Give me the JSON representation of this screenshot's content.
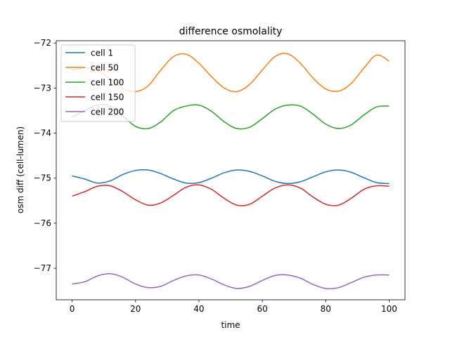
{
  "chart_data": {
    "type": "line",
    "title": "difference osmolality",
    "xlabel": "time",
    "ylabel": "osm diff (cell-lumen)",
    "xlim": [
      -5,
      105
    ],
    "ylim": [
      -77.7,
      -71.95
    ],
    "xticks": [
      0,
      20,
      40,
      60,
      80,
      100
    ],
    "yticks": [
      -77,
      -76,
      -75,
      -74,
      -73,
      -72
    ],
    "grid": false,
    "legend_position": "top-left",
    "x": [
      0,
      4,
      8,
      12,
      16,
      20,
      24,
      28,
      32,
      36,
      40,
      44,
      48,
      52,
      56,
      60,
      64,
      68,
      72,
      76,
      80,
      84,
      88,
      92,
      96,
      100
    ],
    "series": [
      {
        "name": "cell 1",
        "color": "#1f77b4",
        "values": [
          -74.95,
          -75.02,
          -75.11,
          -75.06,
          -74.92,
          -74.83,
          -74.82,
          -74.9,
          -75.02,
          -75.11,
          -75.1,
          -75.0,
          -74.88,
          -74.82,
          -74.85,
          -74.95,
          -75.07,
          -75.12,
          -75.08,
          -74.97,
          -74.86,
          -74.82,
          -74.87,
          -74.99,
          -75.1,
          -75.12
        ]
      },
      {
        "name": "cell 50",
        "color": "#ff7f0e",
        "values": [
          -72.62,
          -72.55,
          -72.6,
          -72.8,
          -73.0,
          -73.08,
          -72.95,
          -72.6,
          -72.3,
          -72.25,
          -72.45,
          -72.75,
          -73.0,
          -73.08,
          -72.92,
          -72.6,
          -72.3,
          -72.24,
          -72.45,
          -72.78,
          -73.02,
          -73.07,
          -72.9,
          -72.56,
          -72.27,
          -72.4
        ]
      },
      {
        "name": "cell 100",
        "color": "#2ca02c",
        "values": [
          -73.65,
          -73.5,
          -73.38,
          -73.4,
          -73.62,
          -73.85,
          -73.9,
          -73.75,
          -73.5,
          -73.4,
          -73.38,
          -73.52,
          -73.75,
          -73.9,
          -73.87,
          -73.68,
          -73.47,
          -73.38,
          -73.4,
          -73.58,
          -73.8,
          -73.9,
          -73.82,
          -73.6,
          -73.42,
          -73.4
        ]
      },
      {
        "name": "cell 150",
        "color": "#d62728",
        "values": [
          -75.4,
          -75.3,
          -75.18,
          -75.17,
          -75.3,
          -75.48,
          -75.6,
          -75.55,
          -75.38,
          -75.2,
          -75.15,
          -75.25,
          -75.45,
          -75.6,
          -75.58,
          -75.4,
          -75.22,
          -75.15,
          -75.22,
          -75.42,
          -75.58,
          -75.6,
          -75.45,
          -75.25,
          -75.17,
          -75.18
        ]
      },
      {
        "name": "cell 200",
        "color": "#9467bd",
        "values": [
          -77.35,
          -77.3,
          -77.17,
          -77.12,
          -77.2,
          -77.35,
          -77.43,
          -77.4,
          -77.27,
          -77.17,
          -77.15,
          -77.24,
          -77.37,
          -77.45,
          -77.4,
          -77.27,
          -77.16,
          -77.15,
          -77.22,
          -77.36,
          -77.45,
          -77.43,
          -77.32,
          -77.2,
          -77.15,
          -77.15
        ]
      }
    ]
  }
}
